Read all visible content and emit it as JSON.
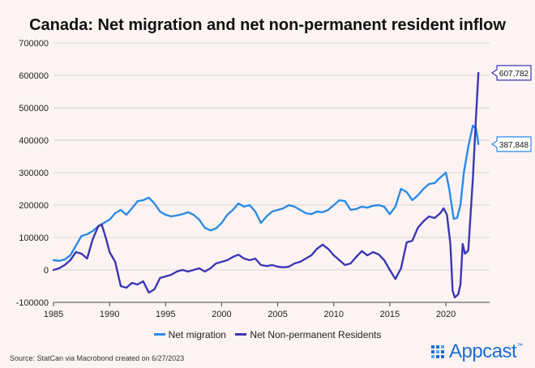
{
  "title": "Canada: Net migration and net non-permanent resident inflow",
  "source": "Source: StatCan via Macrobond created on 6/27/2023",
  "brand": {
    "name": "Appcast",
    "mark": "™"
  },
  "colors": {
    "net_migration": "#2a8be6",
    "non_permanent": "#3a37b5",
    "grid": "#d6d6d6"
  },
  "chart_data": {
    "type": "line",
    "title": "Canada: Net migration and net non-permanent resident inflow",
    "xlabel": "",
    "ylabel": "",
    "xlim": [
      1985,
      2023.9
    ],
    "ylim": [
      -100000,
      700000
    ],
    "x_ticks": [
      "1985",
      "1990",
      "1995",
      "2000",
      "2005",
      "2010",
      "2015",
      "2020"
    ],
    "y_ticks": [
      "-100000",
      "0",
      "100000",
      "200000",
      "300000",
      "400000",
      "500000",
      "600000",
      "700000"
    ],
    "grid": "horizontal",
    "legend": "bottom",
    "end_labels": [
      {
        "series": "Net Non-permanent Residents",
        "text": "607,782",
        "value": 607782
      },
      {
        "series": "Net migration",
        "text": "387,848",
        "value": 387848
      }
    ],
    "series": [
      {
        "name": "Net migration",
        "color": "#2a8be6",
        "points": [
          [
            1985.0,
            30000
          ],
          [
            1985.5,
            28000
          ],
          [
            1986.0,
            32000
          ],
          [
            1986.5,
            45000
          ],
          [
            1987.0,
            75000
          ],
          [
            1987.5,
            105000
          ],
          [
            1988.0,
            110000
          ],
          [
            1988.5,
            120000
          ],
          [
            1989.0,
            135000
          ],
          [
            1989.5,
            145000
          ],
          [
            1990.0,
            155000
          ],
          [
            1990.5,
            175000
          ],
          [
            1991.0,
            185000
          ],
          [
            1991.5,
            170000
          ],
          [
            1992.0,
            190000
          ],
          [
            1992.5,
            212000
          ],
          [
            1993.0,
            215000
          ],
          [
            1993.5,
            223000
          ],
          [
            1994.0,
            205000
          ],
          [
            1994.5,
            180000
          ],
          [
            1995.0,
            170000
          ],
          [
            1995.5,
            165000
          ],
          [
            1996.0,
            168000
          ],
          [
            1996.5,
            172000
          ],
          [
            1997.0,
            178000
          ],
          [
            1997.5,
            170000
          ],
          [
            1998.0,
            155000
          ],
          [
            1998.5,
            130000
          ],
          [
            1999.0,
            122000
          ],
          [
            1999.5,
            128000
          ],
          [
            2000.0,
            145000
          ],
          [
            2000.5,
            170000
          ],
          [
            2001.0,
            185000
          ],
          [
            2001.5,
            205000
          ],
          [
            2002.0,
            195000
          ],
          [
            2002.5,
            200000
          ],
          [
            2003.0,
            180000
          ],
          [
            2003.5,
            145000
          ],
          [
            2004.0,
            165000
          ],
          [
            2004.5,
            180000
          ],
          [
            2005.0,
            185000
          ],
          [
            2005.5,
            190000
          ],
          [
            2006.0,
            200000
          ],
          [
            2006.5,
            195000
          ],
          [
            2007.0,
            185000
          ],
          [
            2007.5,
            175000
          ],
          [
            2008.0,
            172000
          ],
          [
            2008.5,
            180000
          ],
          [
            2009.0,
            178000
          ],
          [
            2009.5,
            185000
          ],
          [
            2010.0,
            200000
          ],
          [
            2010.5,
            215000
          ],
          [
            2011.0,
            212000
          ],
          [
            2011.5,
            185000
          ],
          [
            2012.0,
            188000
          ],
          [
            2012.5,
            195000
          ],
          [
            2013.0,
            192000
          ],
          [
            2013.5,
            198000
          ],
          [
            2014.0,
            200000
          ],
          [
            2014.5,
            195000
          ],
          [
            2015.0,
            172000
          ],
          [
            2015.5,
            195000
          ],
          [
            2016.0,
            250000
          ],
          [
            2016.5,
            240000
          ],
          [
            2017.0,
            215000
          ],
          [
            2017.5,
            230000
          ],
          [
            2018.0,
            250000
          ],
          [
            2018.5,
            265000
          ],
          [
            2019.0,
            268000
          ],
          [
            2019.5,
            285000
          ],
          [
            2020.0,
            300000
          ],
          [
            2020.3,
            250000
          ],
          [
            2020.7,
            158000
          ],
          [
            2021.0,
            160000
          ],
          [
            2021.3,
            200000
          ],
          [
            2021.6,
            300000
          ],
          [
            2022.0,
            380000
          ],
          [
            2022.4,
            445000
          ],
          [
            2022.7,
            435000
          ],
          [
            2022.9,
            388000
          ]
        ]
      },
      {
        "name": "Net Non-permanent Residents",
        "color": "#3a37b5",
        "points": [
          [
            1985.0,
            0
          ],
          [
            1985.5,
            5000
          ],
          [
            1986.0,
            15000
          ],
          [
            1986.5,
            30000
          ],
          [
            1987.0,
            55000
          ],
          [
            1987.5,
            50000
          ],
          [
            1988.0,
            35000
          ],
          [
            1988.5,
            95000
          ],
          [
            1989.0,
            135000
          ],
          [
            1989.3,
            140000
          ],
          [
            1989.7,
            95000
          ],
          [
            1990.0,
            55000
          ],
          [
            1990.5,
            25000
          ],
          [
            1991.0,
            -50000
          ],
          [
            1991.5,
            -55000
          ],
          [
            1992.0,
            -40000
          ],
          [
            1992.5,
            -45000
          ],
          [
            1993.0,
            -35000
          ],
          [
            1993.5,
            -70000
          ],
          [
            1994.0,
            -60000
          ],
          [
            1994.5,
            -25000
          ],
          [
            1995.0,
            -20000
          ],
          [
            1995.5,
            -15000
          ],
          [
            1996.0,
            -5000
          ],
          [
            1996.5,
            0
          ],
          [
            1997.0,
            -5000
          ],
          [
            1997.5,
            0
          ],
          [
            1998.0,
            5000
          ],
          [
            1998.5,
            -5000
          ],
          [
            1999.0,
            5000
          ],
          [
            1999.5,
            20000
          ],
          [
            2000.0,
            25000
          ],
          [
            2000.5,
            30000
          ],
          [
            2001.0,
            40000
          ],
          [
            2001.5,
            47000
          ],
          [
            2002.0,
            35000
          ],
          [
            2002.5,
            30000
          ],
          [
            2003.0,
            35000
          ],
          [
            2003.5,
            15000
          ],
          [
            2004.0,
            12000
          ],
          [
            2004.5,
            15000
          ],
          [
            2005.0,
            10000
          ],
          [
            2005.5,
            8000
          ],
          [
            2006.0,
            10000
          ],
          [
            2006.5,
            20000
          ],
          [
            2007.0,
            25000
          ],
          [
            2007.5,
            35000
          ],
          [
            2008.0,
            45000
          ],
          [
            2008.5,
            65000
          ],
          [
            2009.0,
            78000
          ],
          [
            2009.5,
            65000
          ],
          [
            2010.0,
            45000
          ],
          [
            2010.5,
            30000
          ],
          [
            2011.0,
            15000
          ],
          [
            2011.5,
            20000
          ],
          [
            2012.0,
            40000
          ],
          [
            2012.5,
            58000
          ],
          [
            2013.0,
            45000
          ],
          [
            2013.5,
            55000
          ],
          [
            2014.0,
            48000
          ],
          [
            2014.5,
            30000
          ],
          [
            2015.0,
            0
          ],
          [
            2015.5,
            -28000
          ],
          [
            2016.0,
            5000
          ],
          [
            2016.5,
            85000
          ],
          [
            2017.0,
            90000
          ],
          [
            2017.5,
            130000
          ],
          [
            2018.0,
            150000
          ],
          [
            2018.5,
            165000
          ],
          [
            2019.0,
            160000
          ],
          [
            2019.5,
            175000
          ],
          [
            2019.8,
            190000
          ],
          [
            2020.1,
            170000
          ],
          [
            2020.4,
            80000
          ],
          [
            2020.6,
            -65000
          ],
          [
            2020.8,
            -85000
          ],
          [
            2021.1,
            -75000
          ],
          [
            2021.3,
            -45000
          ],
          [
            2021.5,
            80000
          ],
          [
            2021.7,
            50000
          ],
          [
            2022.0,
            60000
          ],
          [
            2022.4,
            280000
          ],
          [
            2022.7,
            480000
          ],
          [
            2022.9,
            607782
          ]
        ]
      }
    ]
  }
}
